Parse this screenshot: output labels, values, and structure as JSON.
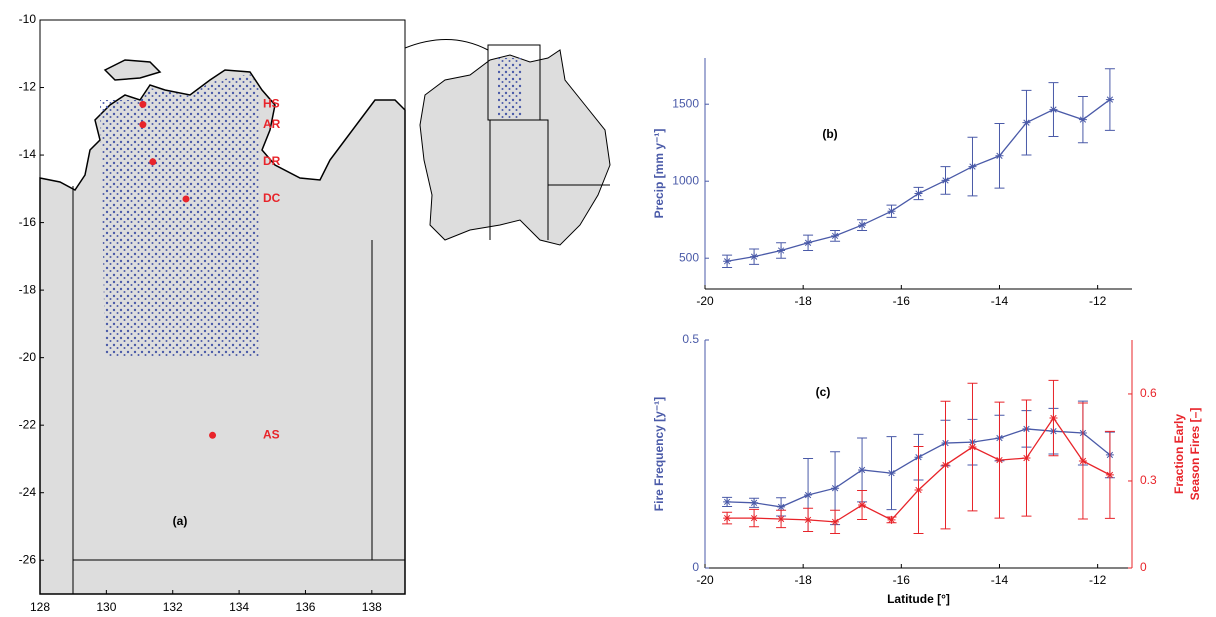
{
  "chart_data": [
    {
      "type": "map",
      "annotation": "(a)",
      "xlim": [
        128,
        139
      ],
      "ylim": [
        -27,
        -10
      ],
      "xticks": [
        128,
        130,
        132,
        134,
        136,
        138
      ],
      "yticks": [
        -10,
        -12,
        -14,
        -16,
        -18,
        -20,
        -22,
        -24,
        -26
      ],
      "sites": {
        "x": [
          131.1,
          131.1,
          131.4,
          132.4,
          133.2
        ],
        "y": [
          -12.5,
          -13.1,
          -14.2,
          -15.3,
          -22.3
        ],
        "labels": [
          "HS",
          "AR",
          "DR",
          "DC",
          "AS"
        ],
        "color": "#e8242a"
      }
    },
    {
      "type": "line",
      "annotation": "(b)",
      "ylabel": "Precip [mm y⁻¹]",
      "x": [
        -19.55,
        -19,
        -18.45,
        -17.9,
        -17.35,
        -16.8,
        -16.2,
        -15.65,
        -15.1,
        -14.55,
        -14,
        -13.45,
        -12.9,
        -12.3,
        -11.75
      ],
      "xlim": [
        -20,
        -11.3
      ],
      "xticks": [
        -20,
        -18,
        -16,
        -14,
        -12
      ],
      "ylim": [
        300,
        1800
      ],
      "yticks": [
        500,
        1000,
        1500
      ],
      "series": [
        {
          "color": "#4a5aa8",
          "values": [
            480,
            510,
            550,
            600,
            645,
            715,
            805,
            920,
            1005,
            1095,
            1165,
            1380,
            1465,
            1400,
            1530
          ],
          "errors": [
            40,
            50,
            50,
            50,
            35,
            35,
            40,
            40,
            90,
            190,
            210,
            210,
            175,
            150,
            200
          ]
        }
      ]
    },
    {
      "type": "line",
      "annotation": "(c)",
      "xlabel": "Latitude [°]",
      "ylabel": "Fire Frequency [y⁻¹]",
      "y2label": [
        "Fraction Early",
        "Season Fires [–]"
      ],
      "x": [
        -19.55,
        -19,
        -18.45,
        -17.9,
        -17.35,
        -16.8,
        -16.2,
        -15.65,
        -15.1,
        -14.55,
        -14,
        -13.45,
        -12.9,
        -12.3,
        -11.75
      ],
      "xlim": [
        -20,
        -11.3
      ],
      "xticks": [
        -20,
        -18,
        -16,
        -14,
        -12
      ],
      "ylim": [
        0,
        0.5
      ],
      "yticks": [
        0,
        0.5
      ],
      "y2lim": [
        0,
        0.786
      ],
      "y2ticks": [
        0,
        0.3,
        0.6
      ],
      "series": [
        {
          "color": "#4a5aa8",
          "values": [
            0.145,
            0.143,
            0.134,
            0.16,
            0.175,
            0.215,
            0.208,
            0.243,
            0.274,
            0.276,
            0.285,
            0.305,
            0.3,
            0.296,
            0.248
          ],
          "errors": [
            0.01,
            0.01,
            0.02,
            0.08,
            0.08,
            0.07,
            0.08,
            0.05,
            0.05,
            0.05,
            0.05,
            0.04,
            0.05,
            0.07,
            0.05
          ]
        },
        {
          "color": "#e8242a",
          "axis": "y2",
          "values": [
            0.172,
            0.172,
            0.169,
            0.166,
            0.159,
            0.217,
            0.166,
            0.269,
            0.355,
            0.417,
            0.372,
            0.379,
            0.517,
            0.369,
            0.321
          ],
          "errors": [
            0.02,
            0.03,
            0.03,
            0.04,
            0.04,
            0.05,
            0.01,
            0.15,
            0.22,
            0.22,
            0.2,
            0.2,
            0.13,
            0.2,
            0.15
          ]
        }
      ]
    }
  ]
}
